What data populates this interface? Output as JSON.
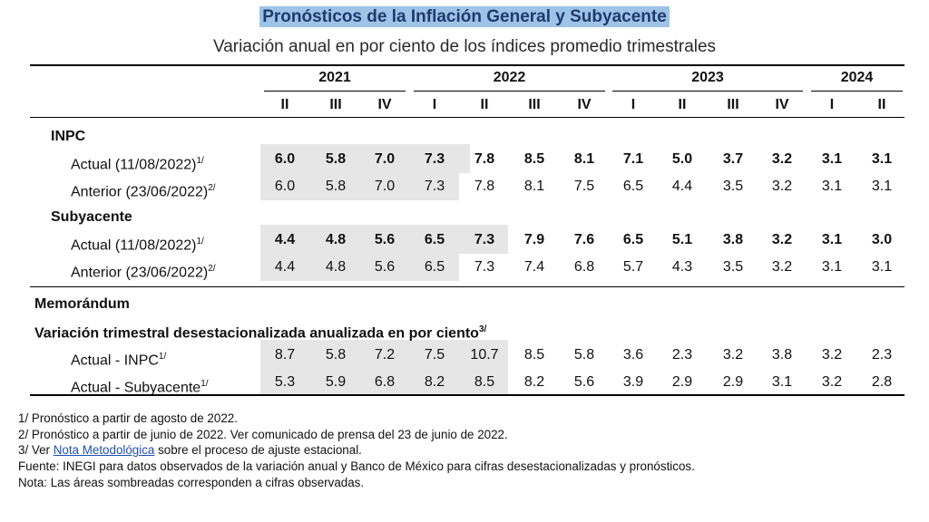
{
  "title": "Pronósticos de la Inflación General y Subyacente",
  "subtitle": "Variación anual en por ciento de los índices promedio trimestrales",
  "years": [
    "2021",
    "2022",
    "2023",
    "2024"
  ],
  "quarters": [
    "II",
    "III",
    "IV",
    "I",
    "II",
    "III",
    "IV",
    "I",
    "II",
    "III",
    "IV",
    "I",
    "II"
  ],
  "sections": {
    "inpc": "INPC",
    "subyacente": "Subyacente",
    "memo": "Memorándum",
    "memo_sub": "Variación trimestral desestacionalizada anualizada en por ciento"
  },
  "rows": [
    {
      "label": "Actual (11/08/2022)",
      "note": "1/",
      "bold": true,
      "values": [
        "6.0",
        "5.8",
        "7.0",
        "7.3",
        "7.8",
        "8.5",
        "8.1",
        "7.1",
        "5.0",
        "3.7",
        "3.2",
        "3.1",
        "3.1"
      ]
    },
    {
      "label": "Anterior (23/06/2022)",
      "note": "2/",
      "bold": false,
      "values": [
        "6.0",
        "5.8",
        "7.0",
        "7.3",
        "7.8",
        "8.1",
        "7.5",
        "6.5",
        "4.4",
        "3.5",
        "3.2",
        "3.1",
        "3.1"
      ]
    },
    {
      "label": "Actual (11/08/2022)",
      "note": "1/",
      "bold": true,
      "values": [
        "4.4",
        "4.8",
        "5.6",
        "6.5",
        "7.3",
        "7.9",
        "7.6",
        "6.5",
        "5.1",
        "3.8",
        "3.2",
        "3.1",
        "3.0"
      ]
    },
    {
      "label": "Anterior (23/06/2022)",
      "note": "2/",
      "bold": false,
      "values": [
        "4.4",
        "4.8",
        "5.6",
        "6.5",
        "7.3",
        "7.4",
        "6.8",
        "5.7",
        "4.3",
        "3.5",
        "3.2",
        "3.1",
        "3.1"
      ]
    },
    {
      "label": "Actual - INPC",
      "note": "1/",
      "bold": false,
      "values": [
        "8.7",
        "5.8",
        "7.2",
        "7.5",
        "10.7",
        "8.5",
        "5.8",
        "3.6",
        "2.3",
        "3.2",
        "3.8",
        "3.2",
        "2.3"
      ]
    },
    {
      "label": "Actual - Subyacente",
      "note": "1/",
      "bold": false,
      "values": [
        "5.3",
        "5.9",
        "6.8",
        "8.2",
        "8.5",
        "8.2",
        "5.6",
        "3.9",
        "2.9",
        "2.9",
        "3.1",
        "3.2",
        "2.8"
      ]
    }
  ],
  "notes": {
    "n1": "1/ Pronóstico a partir de agosto de 2022.",
    "n2": "2/ Pronóstico a partir de junio de 2022. Ver comunicado de prensa del 23 de junio de 2022.",
    "n3_pre": "3/ Ver ",
    "n3_link": "Nota Metodológica",
    "n3_post": " sobre el proceso de ajuste estacional.",
    "fuente": "Fuente: INEGI para datos observados de la variación anual y Banco de México para cifras desestacionalizadas y pronósticos.",
    "nota": "Nota: Las áreas sombreadas corresponden a cifras observadas."
  }
}
